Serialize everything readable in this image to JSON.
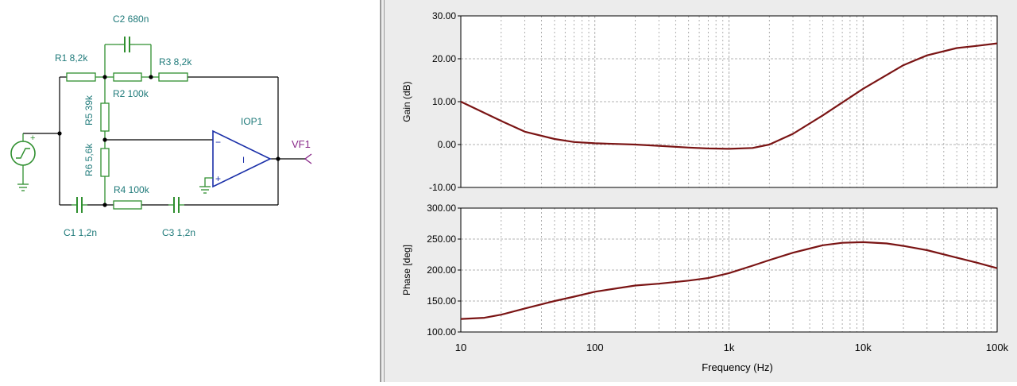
{
  "schematic": {
    "components": {
      "r1": "R1 8,2k",
      "c2": "C2 680n",
      "r3": "R3 8,2k",
      "r2": "R2 100k",
      "r5": "R5 39k",
      "r6": "R6 5,6k",
      "r4": "R4 100k",
      "c1": "C1 1,2n",
      "c3": "C3 1,2n",
      "iop1": "IOP1",
      "vf1": "VF1"
    },
    "colors": {
      "component": "#2f8f2f",
      "label": "#1f7a7a",
      "wire": "#000000",
      "opamp": "#1a2fa8",
      "probe": "#8a2a8a"
    }
  },
  "chart_data": [
    {
      "type": "line",
      "xscale": "log",
      "xlim": [
        10,
        100000
      ],
      "ylim": [
        -10,
        30
      ],
      "ylabel": "Gain (dB)",
      "yticks": [
        "30.00",
        "20.00",
        "10.00",
        "0.00",
        "-10.00"
      ],
      "ytick_values": [
        30,
        20,
        10,
        0,
        -10
      ],
      "grid": true,
      "color": "#7a1414",
      "x": [
        10,
        20,
        30,
        50,
        70,
        100,
        200,
        300,
        500,
        700,
        1000,
        1500,
        2000,
        3000,
        5000,
        7000,
        10000,
        20000,
        30000,
        50000,
        70000,
        100000
      ],
      "y": [
        10.0,
        5.5,
        3.0,
        1.3,
        0.6,
        0.3,
        0.0,
        -0.3,
        -0.7,
        -0.9,
        -1.0,
        -0.8,
        0.0,
        2.5,
        6.8,
        9.8,
        13.0,
        18.5,
        20.8,
        22.5,
        23.0,
        23.6
      ]
    },
    {
      "type": "line",
      "xscale": "log",
      "xlim": [
        10,
        100000
      ],
      "ylim": [
        100,
        300
      ],
      "ylabel": "Phase [deg]",
      "xlabel": "Frequency (Hz)",
      "yticks": [
        "300.00",
        "250.00",
        "200.00",
        "150.00",
        "100.00"
      ],
      "ytick_values": [
        300,
        250,
        200,
        150,
        100
      ],
      "xticks": [
        "10",
        "100",
        "1k",
        "10k",
        "100k"
      ],
      "xtick_values": [
        10,
        100,
        1000,
        10000,
        100000
      ],
      "grid": true,
      "color": "#7a1414",
      "x": [
        10,
        15,
        20,
        30,
        50,
        70,
        100,
        200,
        300,
        500,
        700,
        1000,
        1500,
        2000,
        3000,
        5000,
        7000,
        10000,
        15000,
        20000,
        30000,
        50000,
        70000,
        100000
      ],
      "y": [
        121,
        123,
        128,
        138,
        150,
        157,
        165,
        175,
        178,
        183,
        187,
        195,
        207,
        216,
        228,
        240,
        244,
        245,
        243,
        239,
        232,
        220,
        212,
        203
      ]
    }
  ]
}
